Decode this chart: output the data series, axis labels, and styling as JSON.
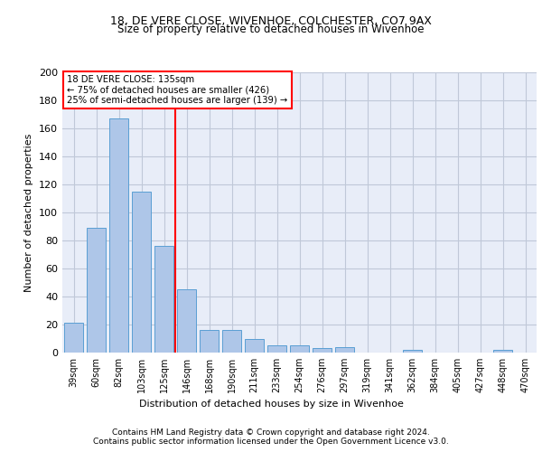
{
  "title1": "18, DE VERE CLOSE, WIVENHOE, COLCHESTER, CO7 9AX",
  "title2": "Size of property relative to detached houses in Wivenhoe",
  "xlabel": "Distribution of detached houses by size in Wivenhoe",
  "ylabel": "Number of detached properties",
  "categories": [
    "39sqm",
    "60sqm",
    "82sqm",
    "103sqm",
    "125sqm",
    "146sqm",
    "168sqm",
    "190sqm",
    "211sqm",
    "233sqm",
    "254sqm",
    "276sqm",
    "297sqm",
    "319sqm",
    "341sqm",
    "362sqm",
    "384sqm",
    "405sqm",
    "427sqm",
    "448sqm",
    "470sqm"
  ],
  "values": [
    21,
    89,
    167,
    115,
    76,
    45,
    16,
    16,
    10,
    5,
    5,
    3,
    4,
    0,
    0,
    2,
    0,
    0,
    0,
    2,
    0
  ],
  "bar_color": "#aec6e8",
  "bar_edge_color": "#5a9fd4",
  "red_line_label": "18 DE VERE CLOSE: 135sqm",
  "annotation_line2": "← 75% of detached houses are smaller (426)",
  "annotation_line3": "25% of semi-detached houses are larger (139) →",
  "ylim": [
    0,
    200
  ],
  "yticks": [
    0,
    20,
    40,
    60,
    80,
    100,
    120,
    140,
    160,
    180,
    200
  ],
  "footnote1": "Contains HM Land Registry data © Crown copyright and database right 2024.",
  "footnote2": "Contains public sector information licensed under the Open Government Licence v3.0.",
  "background_color": "#e8edf8",
  "grid_color": "#c0c8d8"
}
